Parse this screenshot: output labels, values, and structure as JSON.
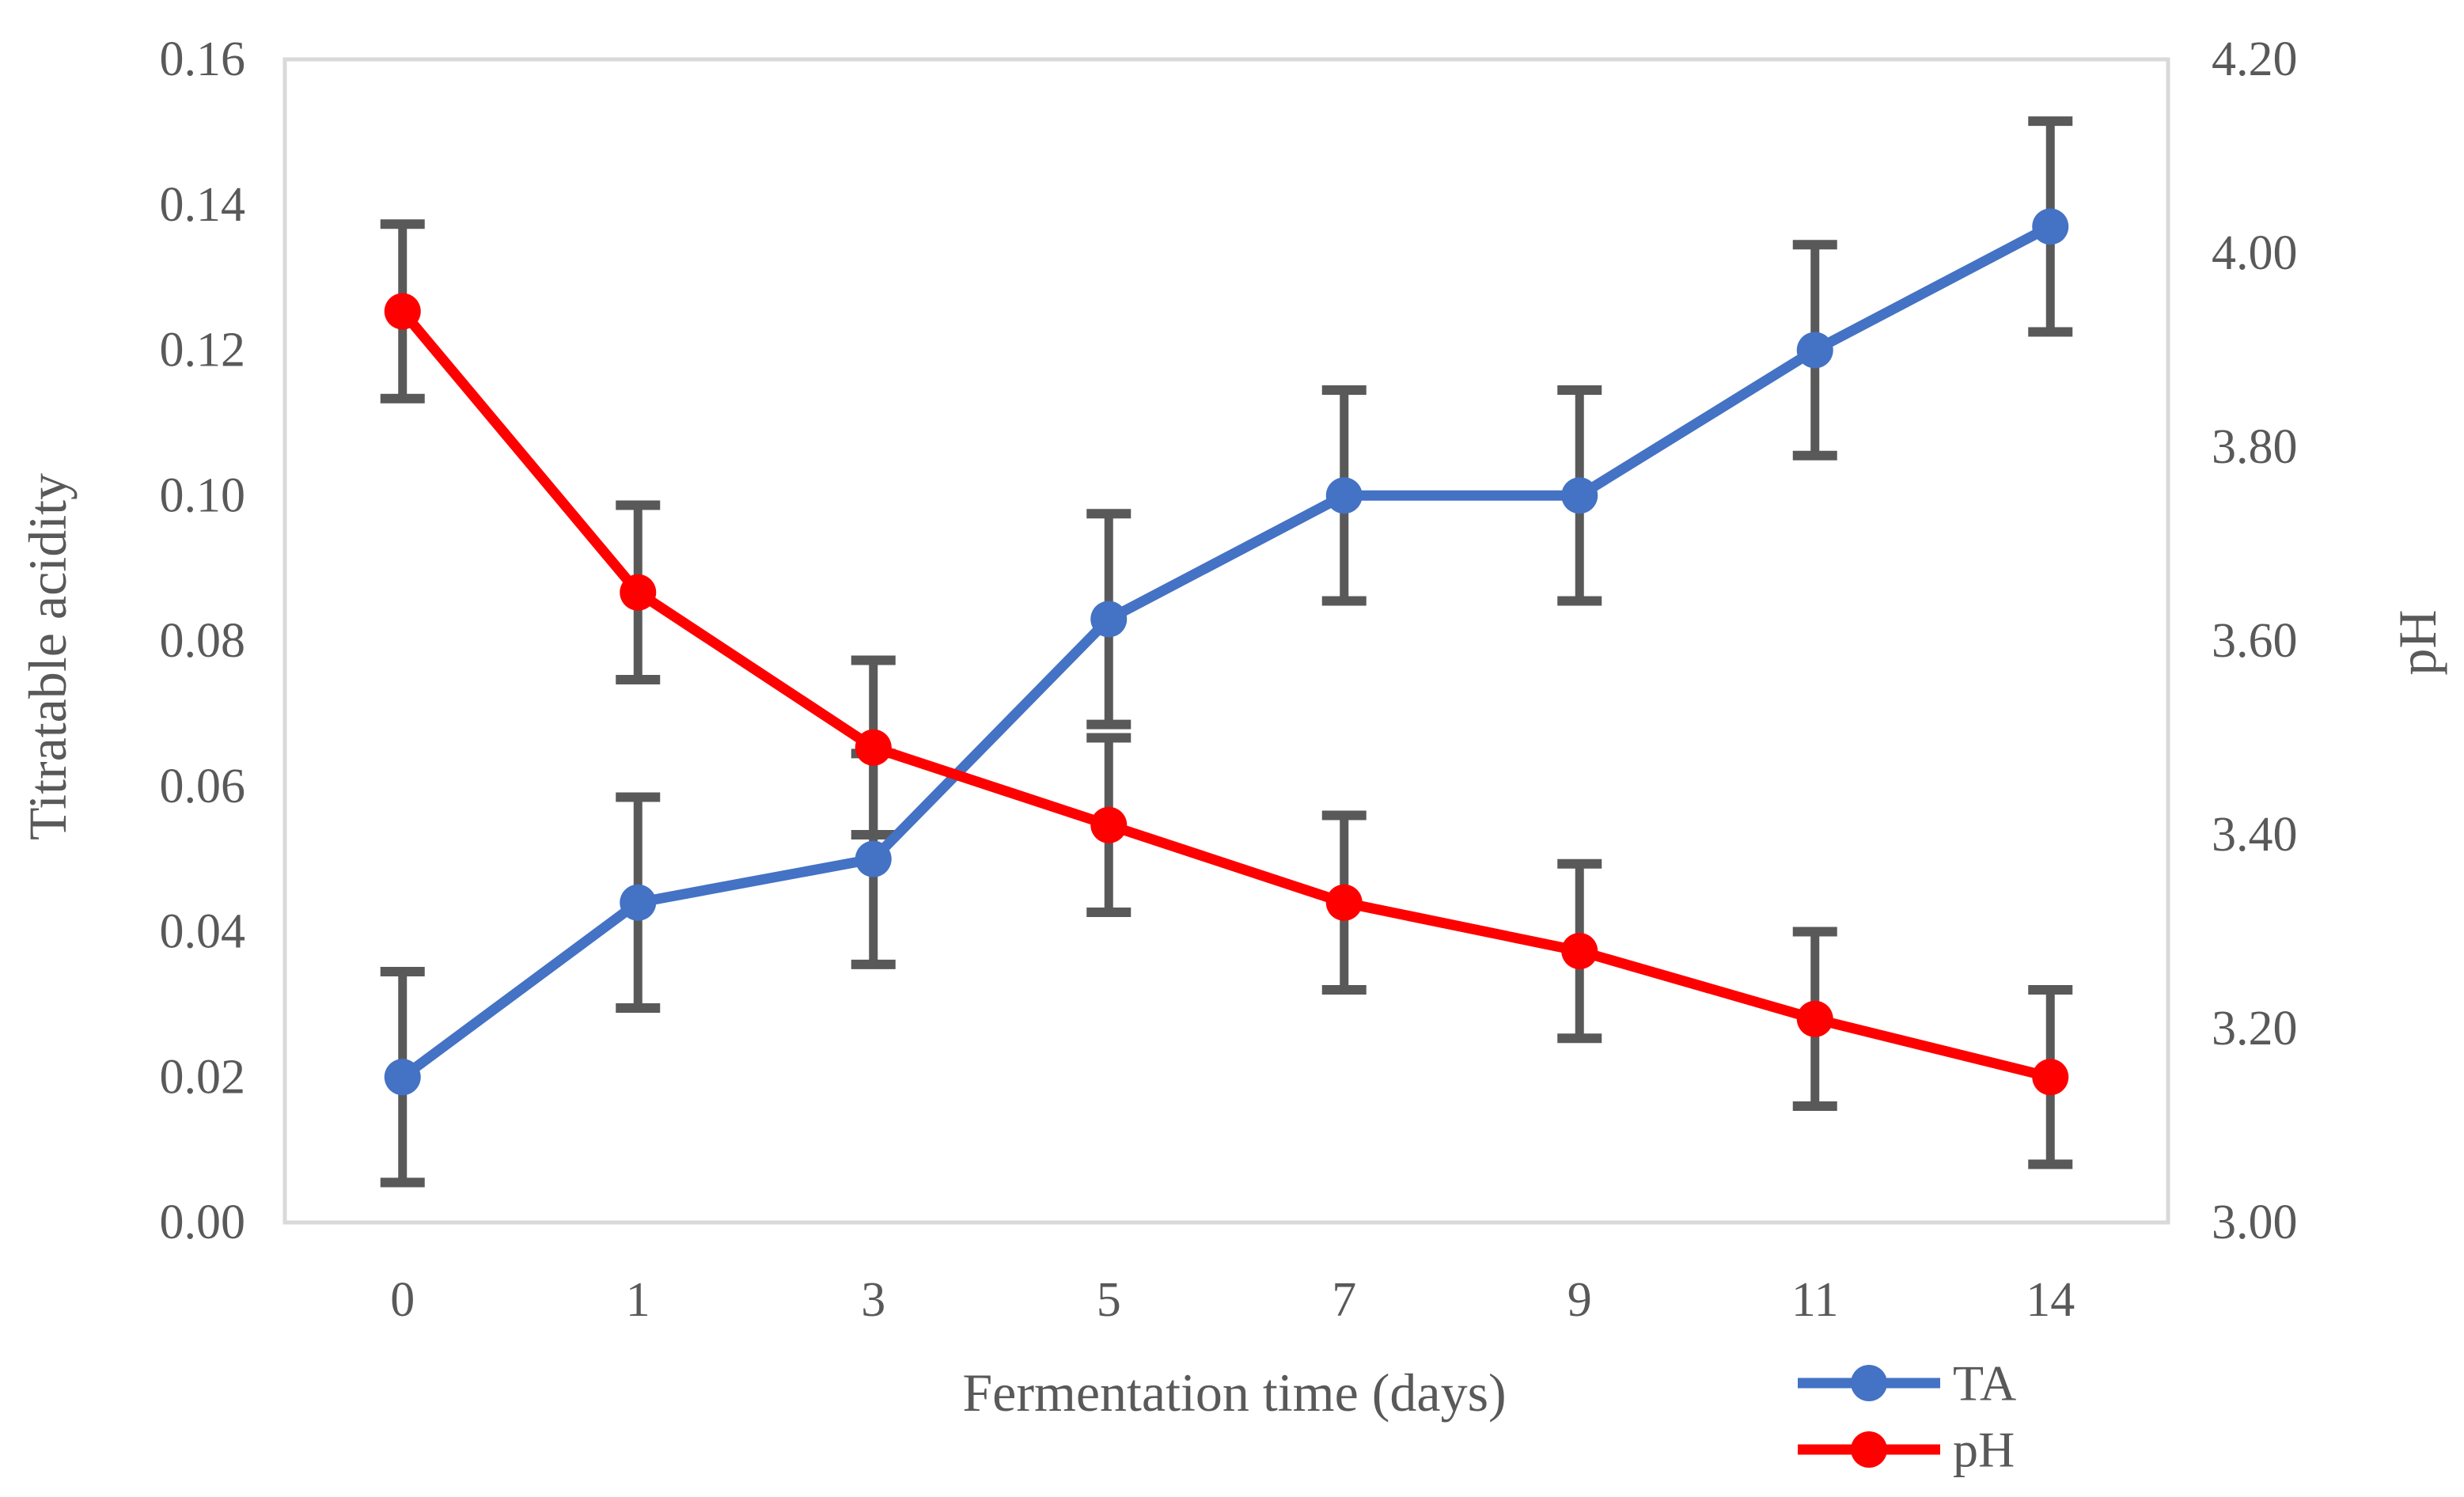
{
  "chart_data": {
    "type": "line",
    "categories": [
      "0",
      "1",
      "3",
      "5",
      "7",
      "9",
      "11",
      "14"
    ],
    "xlabel": "Fermentation time (days)",
    "series": [
      {
        "name": "TA",
        "axis": "left",
        "color": "#4472C4",
        "values": [
          0.02,
          0.044,
          0.05,
          0.083,
          0.1,
          0.1,
          0.12,
          0.137
        ],
        "error": [
          0.0145,
          0.0145,
          0.0145,
          0.0145,
          0.0145,
          0.0145,
          0.0145,
          0.0145
        ]
      },
      {
        "name": "pH",
        "axis": "right",
        "color": "#FF0000",
        "values": [
          3.94,
          3.65,
          3.49,
          3.41,
          3.33,
          3.28,
          3.21,
          3.15
        ],
        "error": [
          0.09,
          0.09,
          0.09,
          0.09,
          0.09,
          0.09,
          0.09,
          0.09
        ]
      }
    ],
    "axes": {
      "left": {
        "label": "Titratable acidity",
        "min": 0.0,
        "max": 0.16,
        "step": 0.02,
        "ticks": [
          "0.16",
          "0.14",
          "0.12",
          "0.10",
          "0.08",
          "0.06",
          "0.04",
          "0.02",
          "0.00"
        ]
      },
      "right": {
        "label": "pH",
        "min": 3.0,
        "max": 4.2,
        "step": 0.2,
        "ticks": [
          "4.20",
          "4.00",
          "3.80",
          "3.60",
          "3.40",
          "3.20",
          "3.00"
        ]
      }
    },
    "legend": {
      "position": "bottom-right",
      "entries": [
        "TA",
        "pH"
      ]
    },
    "grid": false,
    "styles": {
      "text_color": "#595959",
      "error_bar_color": "#595959",
      "plot_border_color": "#D9D9D9",
      "background": "#FFFFFF"
    }
  }
}
